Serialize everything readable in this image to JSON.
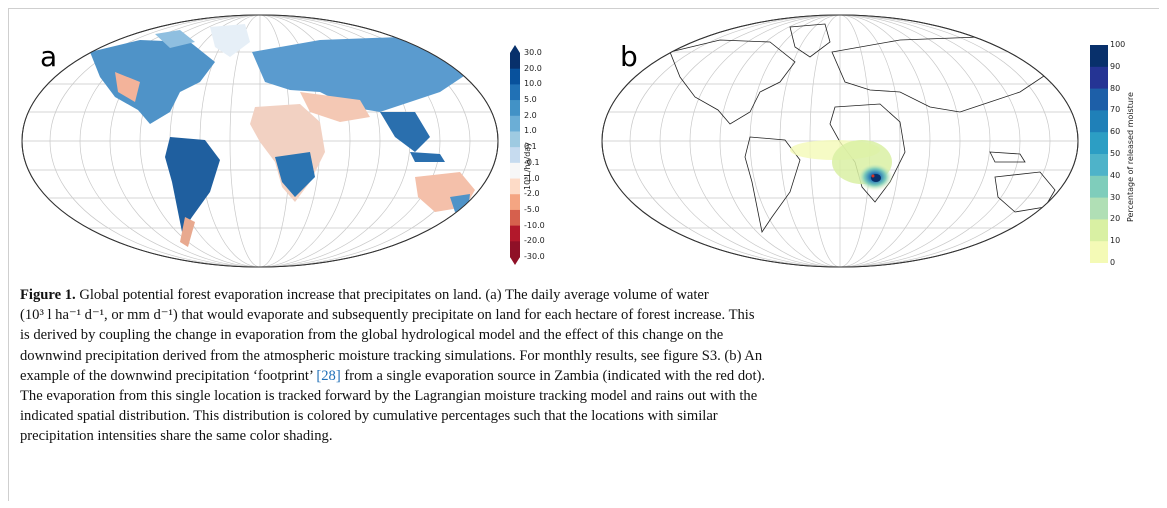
{
  "panels": {
    "a_label": "a",
    "b_label": "b"
  },
  "colorbar_a": {
    "title": "10³L/ha/day",
    "ticks": [
      "30.0",
      "20.0",
      "10.0",
      "5.0",
      "2.0",
      "1.0",
      "0.1",
      "-0.1",
      "-1.0",
      "-2.0",
      "-5.0",
      "-10.0",
      "-20.0",
      "-30.0"
    ],
    "colors": [
      "#08306b",
      "#08519c",
      "#2171b5",
      "#4292c6",
      "#6baed6",
      "#9ecae1",
      "#c6dbef",
      "#f7f7f7",
      "#fddbc7",
      "#f4a582",
      "#d6604d",
      "#b2182b",
      "#8f1027"
    ]
  },
  "colorbar_b": {
    "title": "Percentage of released moisture",
    "ticks": [
      "100",
      "90",
      "80",
      "70",
      "60",
      "50",
      "40",
      "30",
      "20",
      "10",
      "0"
    ],
    "colors": [
      "#08306b",
      "#253494",
      "#1d5fa8",
      "#1f80b8",
      "#2c9ec4",
      "#4eb3c9",
      "#7fcdbb",
      "#b0dfb5",
      "#d9f0a3",
      "#f4fab6"
    ]
  },
  "caption": {
    "fig_label": "Figure 1.",
    "line1_rest": " Global potential forest evaporation increase that precipitates on land. (a) The daily average volume of water",
    "line2": "(10³ l ha⁻¹ d⁻¹, or mm d⁻¹) that would evaporate and subsequently precipitate on land for each hectare of forest increase. This",
    "line3": "is derived by coupling the change in evaporation from the global hydrological model and the effect of this change on the",
    "line4": "downwind precipitation derived from the atmospheric moisture tracking simulations. For monthly results, see figure S3. (b) An",
    "line5_pre": "example of the downwind precipitation ‘footprint’ ",
    "line5_cite": "[28]",
    "line5_post": " from a single evaporation source in Zambia (indicated with the red dot).",
    "line6": "The evaporation from this single location is tracked forward by the Lagrangian moisture tracking model and rains out with the",
    "line7": "indicated spatial distribution. This distribution is colored by cumulative percentages such that the locations with similar",
    "line8": "precipitation intensities share the same color shading."
  }
}
